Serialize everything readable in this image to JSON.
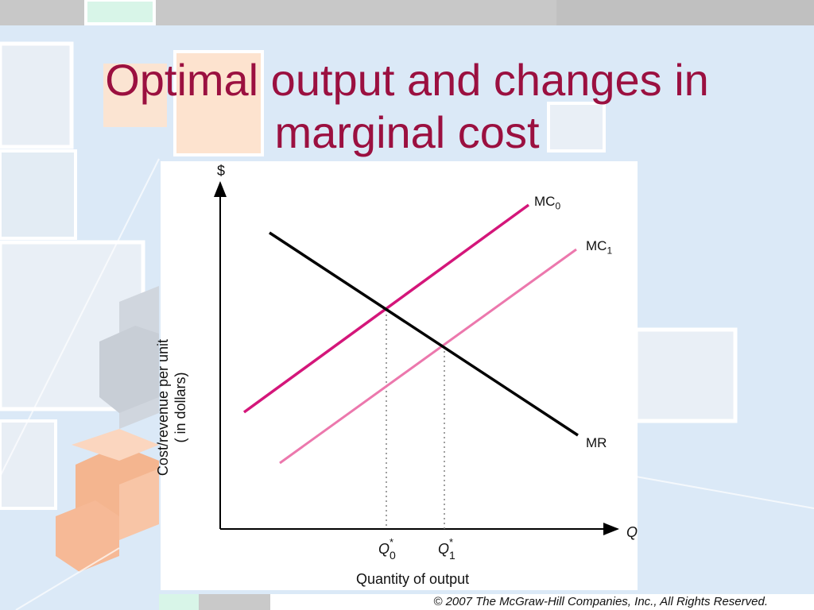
{
  "slide": {
    "title_line1": "Optimal output and changes in",
    "title_line2": "marginal cost",
    "title_color": "#9b1040",
    "footer": "© 2007 The McGraw-Hill Companies, Inc., All Rights Reserved."
  },
  "diagram": {
    "y_axis_symbol": "$",
    "x_axis_symbol": "Q",
    "ylabel_line1": "Cost/revenue per unit",
    "ylabel_line2": "( in dollars)",
    "xlabel": "Quantity of output",
    "curves": {
      "mc0": {
        "base": "MC",
        "sub": "0",
        "color": "#d4167a"
      },
      "mc1": {
        "base": "MC",
        "sub": "1",
        "color": "#ec78ad"
      },
      "mr": {
        "text": "MR",
        "color": "#000000"
      }
    },
    "q0": {
      "base": "Q",
      "sup": "*",
      "sub": "0"
    },
    "q1": {
      "base": "Q",
      "sup": "*",
      "sub": "1"
    }
  }
}
